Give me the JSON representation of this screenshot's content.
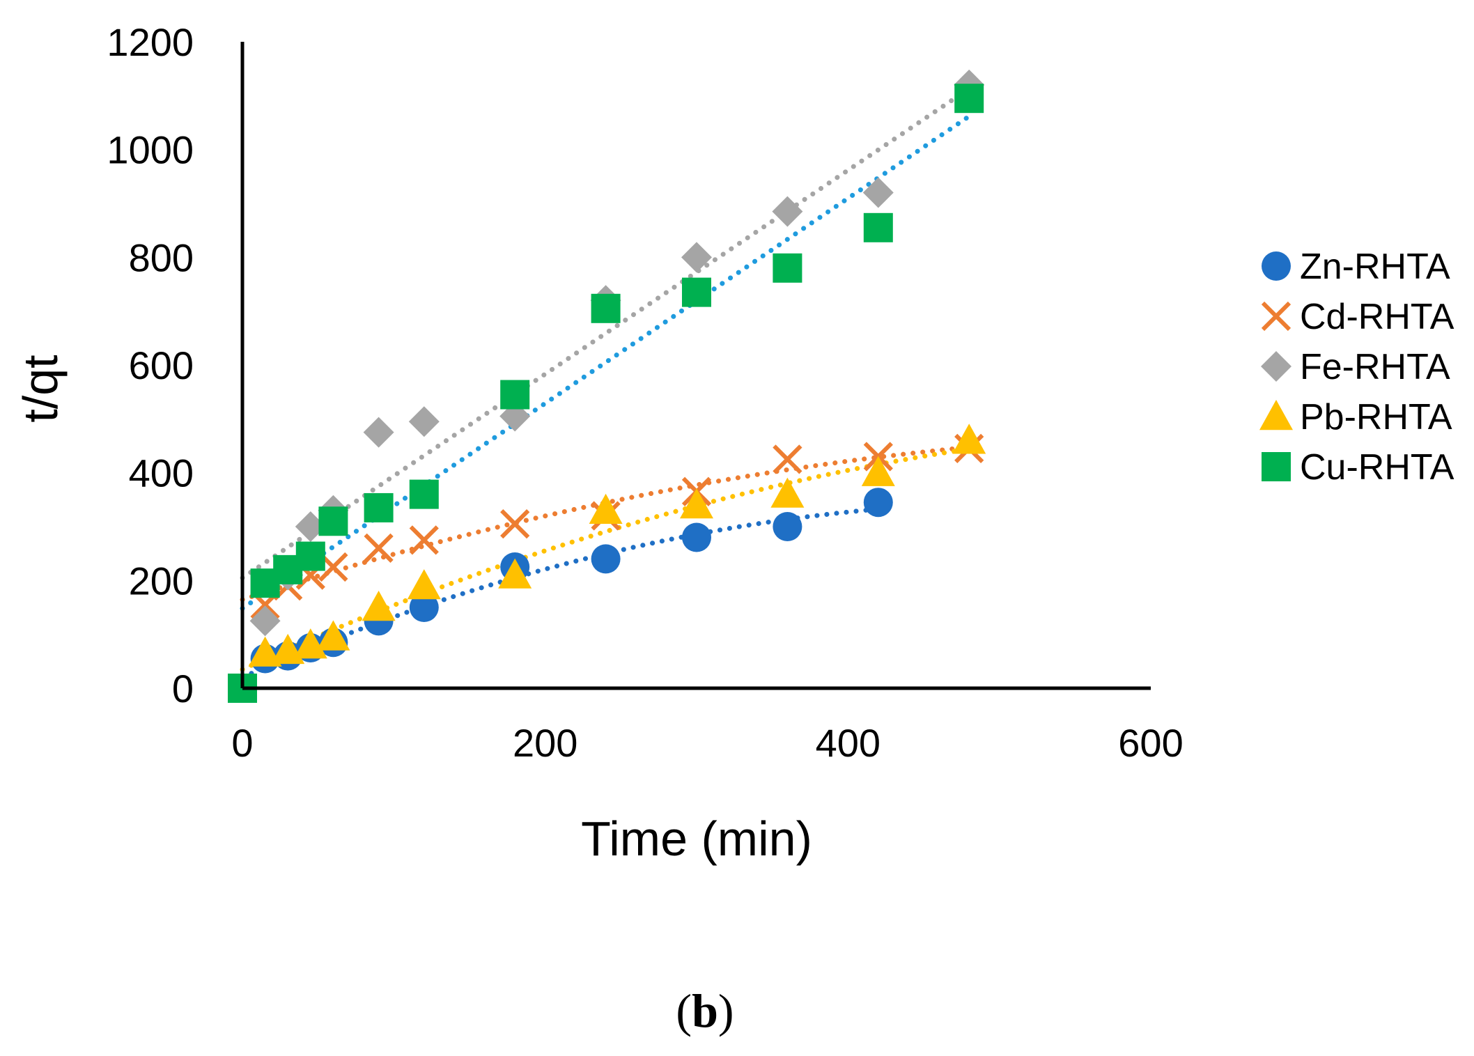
{
  "chart_data": {
    "type": "scatter",
    "title": "",
    "xlabel": "Time (min)",
    "ylabel": "t/qt",
    "xlim": [
      0,
      600
    ],
    "ylim": [
      0,
      1200
    ],
    "xticks": [
      "0",
      "200",
      "400",
      "600"
    ],
    "yticks": [
      "0",
      "200",
      "400",
      "600",
      "800",
      "1000",
      "1200"
    ],
    "grid": false,
    "legend_position": "right",
    "caption": {
      "open": "(",
      "letter": "b",
      "close": ")"
    },
    "series": [
      {
        "name": "Zn-RHTA",
        "marker": "circle",
        "color": "#1F6FC5",
        "trend_color": "#1F6FC5",
        "trend_type": "poly",
        "x": [
          0,
          15,
          30,
          45,
          60,
          90,
          120,
          180,
          240,
          300,
          360,
          420
        ],
        "y": [
          0,
          55,
          60,
          75,
          85,
          125,
          150,
          225,
          240,
          280,
          300,
          345
        ]
      },
      {
        "name": "Cd-RHTA",
        "marker": "cross",
        "color": "#ED7D31",
        "trend_color": "#ED7D31",
        "trend_type": "poly",
        "x": [
          15,
          30,
          45,
          60,
          90,
          120,
          180,
          240,
          300,
          360,
          420,
          480
        ],
        "y": [
          155,
          190,
          210,
          225,
          260,
          275,
          305,
          320,
          365,
          425,
          430,
          445
        ]
      },
      {
        "name": "Fe-RHTA",
        "marker": "diamond",
        "color": "#A5A5A5",
        "trend_color": "#A5A5A5",
        "trend_type": "linear",
        "x": [
          15,
          30,
          45,
          60,
          90,
          120,
          180,
          240,
          300,
          360,
          420,
          480
        ],
        "y": [
          125,
          210,
          300,
          330,
          475,
          495,
          505,
          720,
          800,
          885,
          920,
          1120
        ]
      },
      {
        "name": "Pb-RHTA",
        "marker": "triangle",
        "color": "#FFC000",
        "trend_color": "#FFC000",
        "trend_type": "poly",
        "x": [
          15,
          30,
          45,
          60,
          90,
          120,
          180,
          240,
          300,
          360,
          420,
          480
        ],
        "y": [
          65,
          70,
          80,
          95,
          150,
          190,
          210,
          330,
          340,
          360,
          400,
          460
        ]
      },
      {
        "name": "Cu-RHTA",
        "marker": "square",
        "color": "#00B050",
        "trend_color": "#1F9BDE",
        "trend_type": "linear",
        "x": [
          0,
          15,
          30,
          45,
          60,
          90,
          120,
          180,
          240,
          300,
          360,
          420,
          480
        ],
        "y": [
          0,
          195,
          220,
          245,
          310,
          335,
          360,
          545,
          705,
          735,
          780,
          855,
          1095
        ]
      }
    ]
  }
}
